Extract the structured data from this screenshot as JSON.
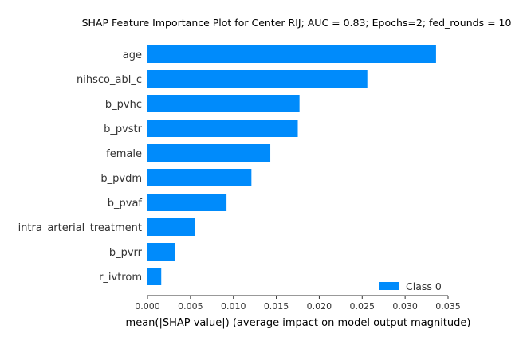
{
  "chart_data": {
    "type": "bar",
    "orientation": "horizontal",
    "title": "SHAP Feature Importance Plot for Center RIJ; AUC = 0.83; Epochs=2; fed_rounds = 10",
    "xlabel": "mean(|SHAP value|) (average impact on model output magnitude)",
    "ylabel": "",
    "categories": [
      "age",
      "nihsco_abl_c",
      "b_pvhc",
      "b_pvstr",
      "female",
      "b_pvdm",
      "b_pvaf",
      "intra_arterial_treatment",
      "b_pvrr",
      "r_ivtrom"
    ],
    "series": [
      {
        "name": "Class 0",
        "color": "#008bfb",
        "values": [
          0.0336,
          0.0256,
          0.0177,
          0.0175,
          0.0143,
          0.0121,
          0.0092,
          0.0055,
          0.0032,
          0.0016
        ]
      }
    ],
    "xlim": [
      0,
      0.035
    ],
    "xticks": [
      "0.000",
      "0.005",
      "0.010",
      "0.015",
      "0.020",
      "0.025",
      "0.030",
      "0.035"
    ],
    "grid": false,
    "legend_position": "lower-right"
  }
}
